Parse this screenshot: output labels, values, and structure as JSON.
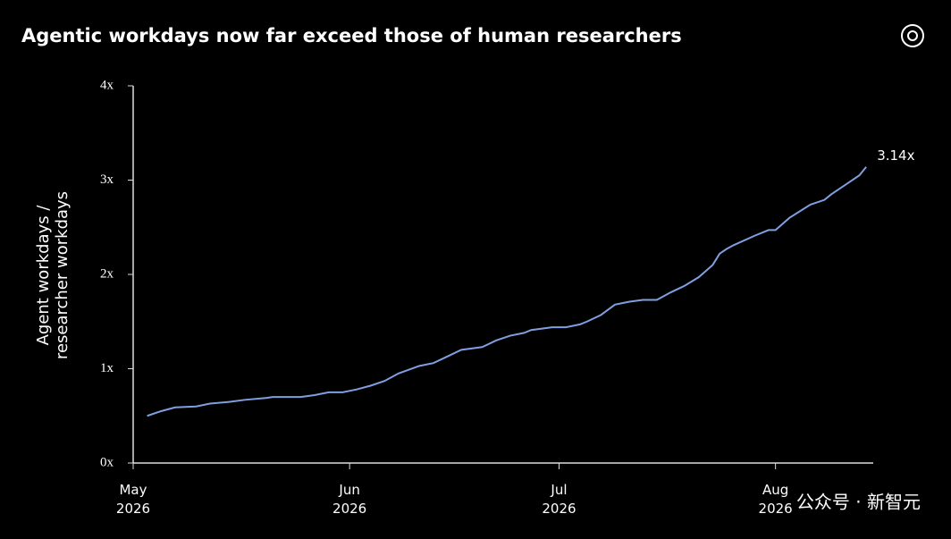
{
  "chart_data": {
    "type": "line",
    "title": "Agentic workdays now far exceed those of human researchers",
    "ylabel": [
      "Agent workdays /",
      "researcher workdays"
    ],
    "x": [
      "2026-05-03",
      "2026-05-05",
      "2026-05-07",
      "2026-05-10",
      "2026-05-12",
      "2026-05-15",
      "2026-05-17",
      "2026-05-20",
      "2026-05-21",
      "2026-05-25",
      "2026-05-27",
      "2026-05-29",
      "2026-05-31",
      "2026-06-02",
      "2026-06-04",
      "2026-06-06",
      "2026-06-08",
      "2026-06-11",
      "2026-06-13",
      "2026-06-15",
      "2026-06-17",
      "2026-06-20",
      "2026-06-22",
      "2026-06-24",
      "2026-06-26",
      "2026-06-27",
      "2026-06-30",
      "2026-07-02",
      "2026-07-04",
      "2026-07-05",
      "2026-07-07",
      "2026-07-09",
      "2026-07-11",
      "2026-07-13",
      "2026-07-15",
      "2026-07-17",
      "2026-07-19",
      "2026-07-21",
      "2026-07-23",
      "2026-07-24",
      "2026-07-25",
      "2026-07-26",
      "2026-07-29",
      "2026-07-31",
      "2026-08-01",
      "2026-08-03",
      "2026-08-06",
      "2026-08-08",
      "2026-08-09",
      "2026-08-11",
      "2026-08-13",
      "2026-08-14"
    ],
    "series": [
      {
        "color": "#7f9fe0",
        "values": [
          0.5,
          0.55,
          0.59,
          0.6,
          0.63,
          0.65,
          0.67,
          0.69,
          0.7,
          0.7,
          0.72,
          0.75,
          0.75,
          0.78,
          0.82,
          0.87,
          0.95,
          1.03,
          1.06,
          1.13,
          1.2,
          1.23,
          1.3,
          1.35,
          1.38,
          1.41,
          1.44,
          1.44,
          1.47,
          1.5,
          1.57,
          1.68,
          1.71,
          1.73,
          1.73,
          1.81,
          1.88,
          1.97,
          2.1,
          2.22,
          2.27,
          2.31,
          2.41,
          2.47,
          2.47,
          2.6,
          2.74,
          2.79,
          2.85,
          2.95,
          3.05,
          3.14
        ]
      }
    ],
    "end_label": "3.14x",
    "xlim": [
      "2026-05-01",
      "2026-08-15"
    ],
    "xticks": [
      {
        "value": "2026-05-01",
        "label": "May\n2026"
      },
      {
        "value": "2026-06-01",
        "label": "Jun\n2026"
      },
      {
        "value": "2026-07-01",
        "label": "Jul\n2026"
      },
      {
        "value": "2026-08-01",
        "label": "Aug\n2026"
      }
    ],
    "ylim": [
      0,
      4
    ],
    "yticks": [
      {
        "value": 0,
        "label": "0x"
      },
      {
        "value": 1,
        "label": "1x"
      },
      {
        "value": 2,
        "label": "2x"
      },
      {
        "value": 3,
        "label": "3x"
      },
      {
        "value": 4,
        "label": "4x"
      }
    ],
    "grid": false
  },
  "watermark": "公众号 · 新智元"
}
